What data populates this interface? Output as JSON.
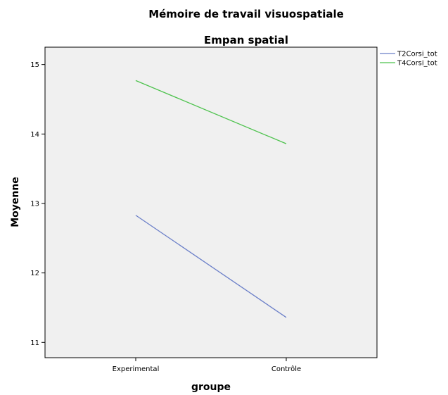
{
  "chart_data": {
    "type": "line",
    "title": "Mémoire de travail visuospatiale",
    "subtitle": "Empan spatial",
    "xlabel": "groupe",
    "ylabel": "Moyenne",
    "categories": [
      "Experimental",
      "Contrôle"
    ],
    "y_ticks": [
      11,
      12,
      13,
      14,
      15
    ],
    "ylim": [
      10.78,
      15.25
    ],
    "grid": false,
    "legend_position": "right",
    "plot_background": "#f0f0f0",
    "series": [
      {
        "name": "T2Corsi_tot",
        "color": "#6b7fc8",
        "values": [
          12.83,
          11.36
        ]
      },
      {
        "name": "T4Corsi_tot",
        "color": "#4cc24c",
        "values": [
          14.77,
          13.86
        ]
      }
    ]
  }
}
